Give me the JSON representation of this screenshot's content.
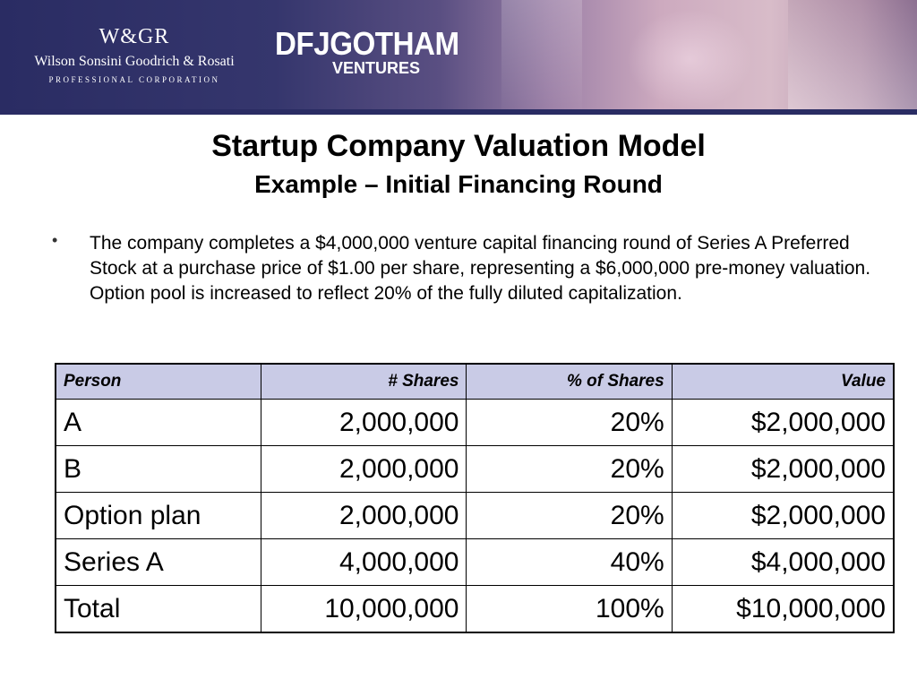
{
  "header": {
    "wsgr_monogram": "W&GR",
    "wsgr_name": "Wilson Sonsini Goodrich & Rosati",
    "wsgr_subtitle": "PROFESSIONAL CORPORATION",
    "dfj_name": "DFJGOTHAM",
    "dfj_subtitle": "VENTURES",
    "colors": {
      "banner_dark": "#2a2c63",
      "banner_light": "#d8bcc9"
    }
  },
  "slide": {
    "title": "Startup Company Valuation Model",
    "subtitle": "Example – Initial Financing Round",
    "bullet_icon": "bullet-dot",
    "bullet_text": "The company completes a $4,000,000 venture capital financing round of Series A Preferred Stock at a purchase price of $1.00 per share, representing a $6,000,000 pre-money valuation. Option pool is increased to reflect 20% of the fully diluted capitalization."
  },
  "table": {
    "header_color": "#c9cbe6",
    "columns": [
      "Person",
      "# Shares",
      "% of Shares",
      "Value"
    ],
    "rows": [
      [
        "A",
        "2,000,000",
        "20%",
        "$2,000,000"
      ],
      [
        "B",
        "2,000,000",
        "20%",
        "$2,000,000"
      ],
      [
        "Option plan",
        "2,000,000",
        "20%",
        "$2,000,000"
      ],
      [
        "Series A",
        "4,000,000",
        "40%",
        "$4,000,000"
      ],
      [
        "Total",
        "10,000,000",
        "100%",
        "$10,000,000"
      ]
    ]
  }
}
